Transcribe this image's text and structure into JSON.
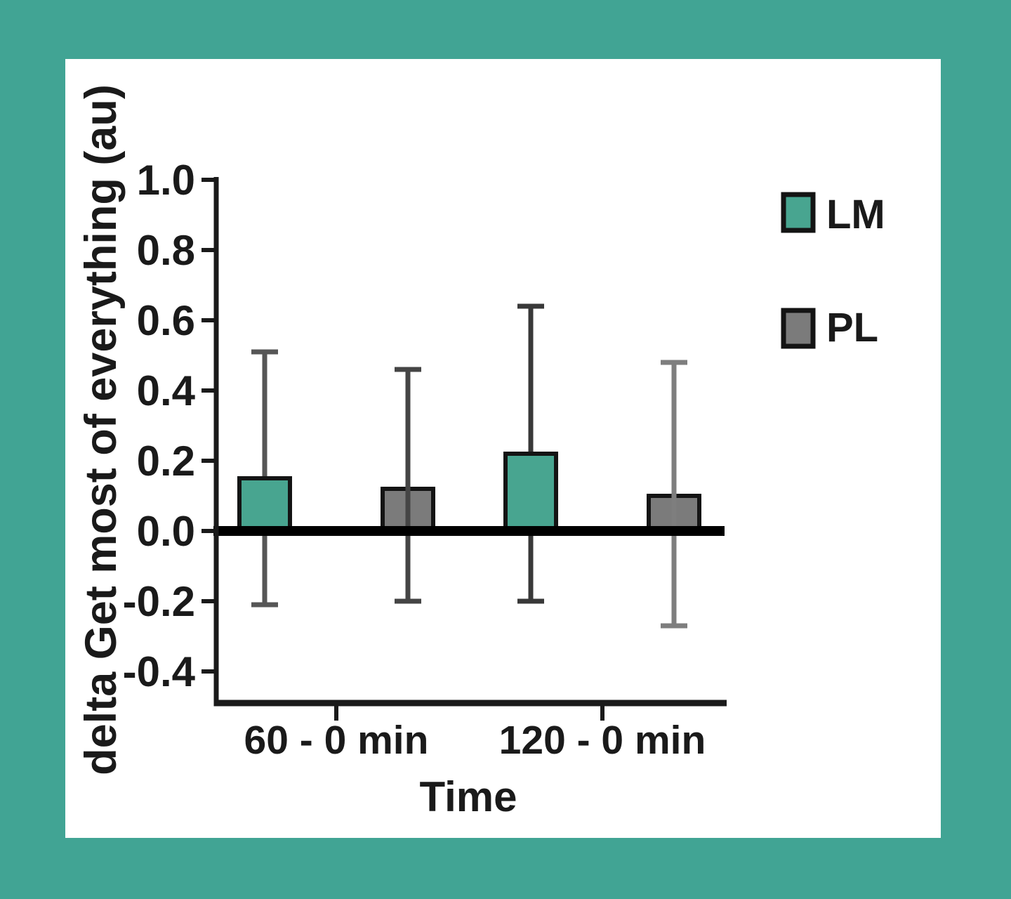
{
  "page": {
    "background_color": "#41a494",
    "panel_color": "#ffffff"
  },
  "chart_data": {
    "type": "bar",
    "title": "",
    "xlabel": "Time",
    "ylabel": "delta Get most of everything (au)",
    "categories": [
      "60 - 0 min",
      "120 - 0 min"
    ],
    "series": [
      {
        "name": "LM",
        "color": "#48a590",
        "values": [
          0.15,
          0.22
        ],
        "error_upper": [
          0.51,
          0.64
        ],
        "error_lower": [
          -0.21,
          -0.2
        ],
        "whisker_colors": [
          "#565656",
          "#383838"
        ],
        "whisker_in_front": false
      },
      {
        "name": "PL",
        "color": "#7b7b7b",
        "values": [
          0.12,
          0.1
        ],
        "error_upper": [
          0.46,
          0.48
        ],
        "error_lower": [
          -0.2,
          -0.27
        ],
        "whisker_colors": [
          "#454545",
          "#7e7e7e"
        ],
        "whisker_in_front": true
      }
    ],
    "ylim": [
      -0.4,
      1.0
    ],
    "yticks": [
      1.0,
      0.8,
      0.6,
      0.4,
      0.2,
      0.0,
      -0.2,
      -0.4
    ],
    "ytick_labels": [
      "1.0",
      "0.8",
      "0.6",
      "0.4",
      "0.2",
      "0.0",
      "-0.2",
      "-0.4"
    ],
    "baseline": 0,
    "grid": false,
    "legend_position": "upper-right",
    "bar_edge_color": "#141414",
    "zero_line_color": "#000000",
    "axis_color": "#1a1a1a"
  }
}
